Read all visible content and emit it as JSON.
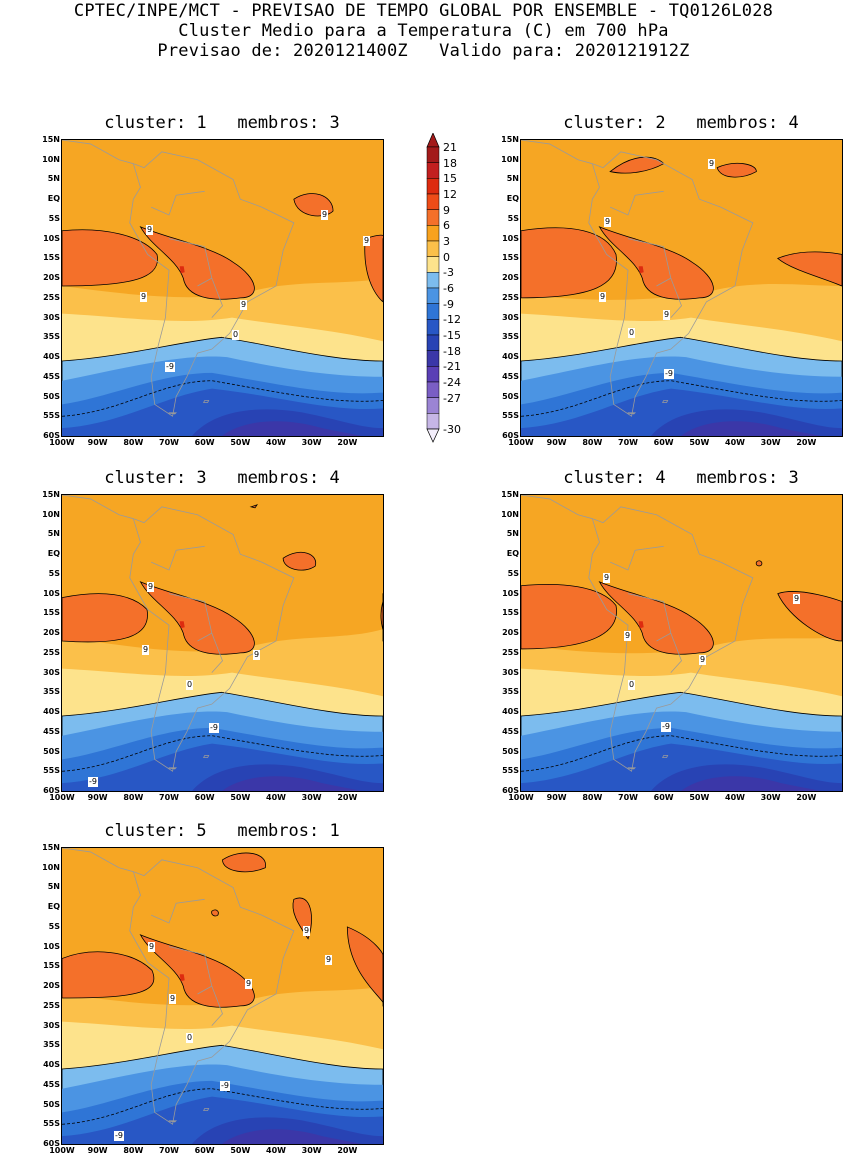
{
  "header": {
    "line1": "CPTEC/INPE/MCT - PREVISAO DE TEMPO GLOBAL POR ENSEMBLE - TQ0126L028",
    "line2": "Cluster Medio para a Temperatura (C) em 700 hPa",
    "line3": "Previsao de: 2020121400Z   Valido para: 2020121912Z"
  },
  "y_ticks": [
    "15N",
    "10N",
    "5N",
    "EQ",
    "5S",
    "10S",
    "15S",
    "20S",
    "25S",
    "30S",
    "35S",
    "40S",
    "45S",
    "50S",
    "55S",
    "60S"
  ],
  "x_ticks": [
    "100W",
    "90W",
    "80W",
    "70W",
    "60W",
    "50W",
    "40W",
    "30W",
    "20W"
  ],
  "colorbar": {
    "levels": [
      "21",
      "18",
      "15",
      "12",
      "9",
      "6",
      "3",
      "0",
      "-3",
      "-6",
      "-9",
      "-12",
      "-15",
      "-18",
      "-21",
      "-24",
      "-27",
      "-30"
    ],
    "colors": [
      "#a31a1a",
      "#c21f1f",
      "#dd2b0f",
      "#ee4c18",
      "#f4702a",
      "#f8a21e",
      "#fbc04a",
      "#fde38c",
      "#7cbcee",
      "#4b94e3",
      "#2f75d6",
      "#2857c5",
      "#2843b4",
      "#3b37a8",
      "#5a3fb5",
      "#7a5ec4",
      "#9b84d4",
      "#c6b6e6"
    ]
  },
  "contour_labels": {
    "nine": "9",
    "zero": "0",
    "minus_nine": "-9"
  },
  "panels": [
    {
      "title": "cluster: 1   membros: 3"
    },
    {
      "title": "cluster: 2   membros: 4"
    },
    {
      "title": "cluster: 3   membros: 4"
    },
    {
      "title": "cluster: 4   membros: 3"
    },
    {
      "title": "cluster: 5   membros: 1"
    }
  ]
}
